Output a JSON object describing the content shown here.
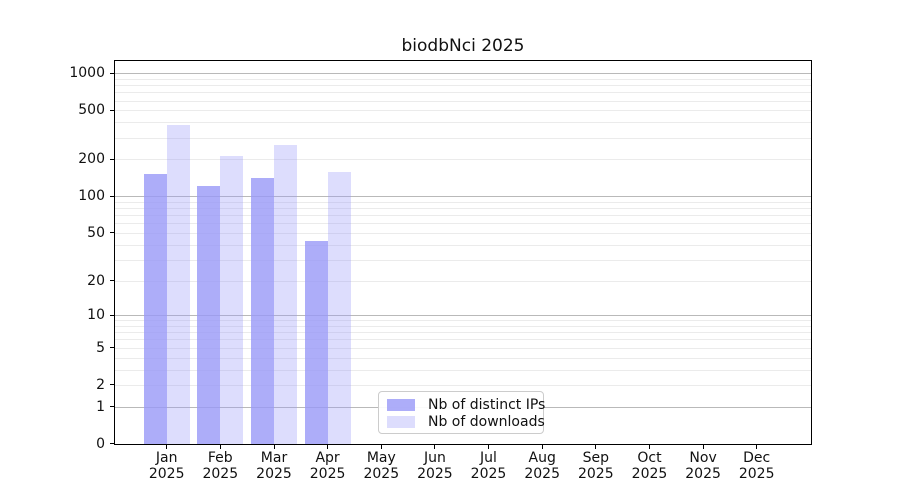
{
  "chart_data": {
    "type": "bar",
    "title": "biodbNci 2025",
    "x_ticks": [
      {
        "month": "Jan",
        "year": "2025"
      },
      {
        "month": "Feb",
        "year": "2025"
      },
      {
        "month": "Mar",
        "year": "2025"
      },
      {
        "month": "Apr",
        "year": "2025"
      },
      {
        "month": "May",
        "year": "2025"
      },
      {
        "month": "Jun",
        "year": "2025"
      },
      {
        "month": "Jul",
        "year": "2025"
      },
      {
        "month": "Aug",
        "year": "2025"
      },
      {
        "month": "Sep",
        "year": "2025"
      },
      {
        "month": "Oct",
        "year": "2025"
      },
      {
        "month": "Nov",
        "year": "2025"
      },
      {
        "month": "Dec",
        "year": "2025"
      }
    ],
    "y_ticks": [
      0,
      1,
      2,
      5,
      10,
      20,
      50,
      100,
      200,
      500,
      1000
    ],
    "y_scale": "log1p",
    "ylim": [
      0,
      1280
    ],
    "grid": true,
    "legend_position": "lower center",
    "series": [
      {
        "name": "Nb of distinct IPs",
        "color": "#9898f8",
        "alpha": 0.8,
        "values": [
          152,
          121,
          140,
          43,
          0,
          0,
          0,
          0,
          0,
          0,
          0,
          0
        ]
      },
      {
        "name": "Nb of downloads",
        "color": "#9898f8",
        "alpha": 0.33,
        "values": [
          380,
          212,
          261,
          158,
          0,
          0,
          0,
          0,
          0,
          0,
          0,
          0
        ]
      }
    ]
  }
}
